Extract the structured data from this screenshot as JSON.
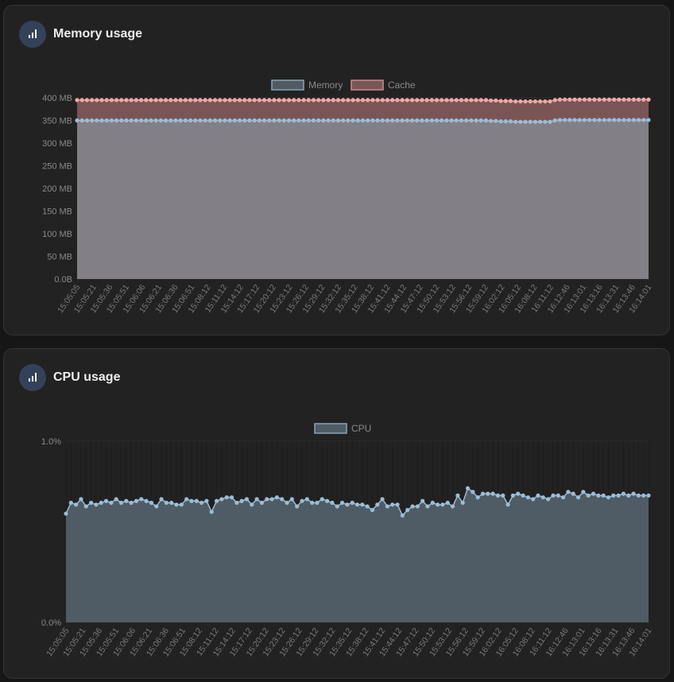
{
  "colors": {
    "memory_fill": "#828086",
    "memory_line": "#9bbdd6",
    "cache_fill": "#7a5556",
    "cache_line": "#f0a8a8",
    "cpu_fill": "#4f5c65",
    "cpu_line": "#9bbdd6",
    "legend_memory_fill": "#4f5c65",
    "legend_memory_border": "#8aa3b8",
    "legend_cache_fill": "#7a5556",
    "legend_cache_border": "#d08a8a"
  },
  "memory": {
    "title": "Memory usage",
    "icon": "bar-chart-icon",
    "legend": [
      "Memory",
      "Cache"
    ]
  },
  "cpu": {
    "title": "CPU usage",
    "icon": "bar-chart-icon",
    "legend": [
      "CPU"
    ]
  },
  "chart_data": [
    {
      "type": "area",
      "title": "Memory usage",
      "ylim": [
        0,
        400
      ],
      "y_ticks": [
        "0.0B",
        "50 MB",
        "100 MB",
        "150 MB",
        "200 MB",
        "250 MB",
        "300 MB",
        "350 MB",
        "400 MB"
      ],
      "x_ticks": [
        "15:05:05",
        "15:05:21",
        "15:05:36",
        "15:05:51",
        "15:06:06",
        "15:06:21",
        "15:06:36",
        "15:06:51",
        "15:08:12",
        "15:11:12",
        "15:14:12",
        "15:17:12",
        "15:20:12",
        "15:23:12",
        "15:26:12",
        "15:29:12",
        "15:32:12",
        "15:35:12",
        "15:38:12",
        "15:41:12",
        "15:44:12",
        "15:47:12",
        "15:50:12",
        "15:53:12",
        "15:56:12",
        "15:59:12",
        "16:02:12",
        "16:05:12",
        "16:08:12",
        "16:11:12",
        "16:12:46",
        "16:13:01",
        "16:13:16",
        "16:13:31",
        "16:13:46",
        "16:14:01"
      ],
      "legend_position": "top",
      "series": [
        {
          "name": "Memory",
          "values": [
            350,
            350,
            350,
            350,
            350,
            350,
            350,
            350,
            350,
            350,
            350,
            350,
            350,
            350,
            350,
            350,
            350,
            350,
            350,
            350,
            350,
            350,
            350,
            350,
            350,
            350,
            350,
            350,
            350,
            350,
            350,
            350,
            350,
            350,
            350,
            350,
            350,
            350,
            350,
            350,
            350,
            350,
            350,
            350,
            350,
            350,
            350,
            350,
            350,
            350,
            350,
            350,
            350,
            350,
            350,
            350,
            350,
            350,
            350,
            350,
            350,
            350,
            350,
            350,
            350,
            350,
            350,
            350,
            350,
            350,
            350,
            350,
            350,
            350,
            350,
            350,
            350,
            350,
            350,
            350,
            350,
            350,
            350,
            350,
            349,
            349,
            348,
            348,
            348,
            347,
            347,
            347,
            347,
            347,
            347,
            347,
            347,
            350,
            351,
            351,
            351,
            351,
            351,
            351,
            351,
            351,
            351,
            351,
            351,
            351,
            351,
            351,
            351,
            351,
            351,
            351,
            351
          ]
        },
        {
          "name": "Cache",
          "values": [
            395,
            395,
            395,
            395,
            395,
            395,
            395,
            395,
            395,
            395,
            395,
            395,
            395,
            395,
            395,
            395,
            395,
            395,
            395,
            395,
            395,
            395,
            395,
            395,
            395,
            395,
            395,
            395,
            395,
            395,
            395,
            395,
            395,
            395,
            395,
            395,
            395,
            395,
            395,
            395,
            395,
            395,
            395,
            395,
            395,
            395,
            395,
            395,
            395,
            395,
            395,
            395,
            395,
            395,
            395,
            395,
            395,
            395,
            395,
            395,
            395,
            395,
            395,
            395,
            395,
            395,
            395,
            395,
            395,
            395,
            395,
            395,
            395,
            395,
            395,
            395,
            395,
            395,
            395,
            395,
            395,
            395,
            395,
            395,
            394,
            394,
            393,
            393,
            393,
            392,
            392,
            392,
            392,
            392,
            392,
            392,
            392,
            395,
            396,
            396,
            396,
            396,
            396,
            396,
            396,
            396,
            396,
            396,
            396,
            396,
            396,
            396,
            396,
            396,
            396,
            396,
            396
          ]
        }
      ]
    },
    {
      "type": "area",
      "title": "CPU usage",
      "ylim": [
        0,
        1.0
      ],
      "y_ticks": [
        "0.0%",
        "1.0%"
      ],
      "x_ticks": [
        "15:05:05",
        "15:05:21",
        "15:05:36",
        "15:05:51",
        "15:06:06",
        "15:06:21",
        "15:06:36",
        "15:06:51",
        "15:08:12",
        "15:11:12",
        "15:14:12",
        "15:17:12",
        "15:20:12",
        "15:23:12",
        "15:26:12",
        "15:29:12",
        "15:32:12",
        "15:35:12",
        "15:38:12",
        "15:41:12",
        "15:44:12",
        "15:47:12",
        "15:50:12",
        "15:53:12",
        "15:56:12",
        "15:59:12",
        "16:02:12",
        "16:05:12",
        "16:08:12",
        "16:11:12",
        "16:12:46",
        "16:13:01",
        "16:13:16",
        "16:13:31",
        "16:13:46",
        "16:14:01"
      ],
      "legend_position": "top",
      "series": [
        {
          "name": "CPU",
          "values": [
            0.6,
            0.66,
            0.65,
            0.68,
            0.64,
            0.66,
            0.65,
            0.66,
            0.67,
            0.66,
            0.68,
            0.66,
            0.67,
            0.66,
            0.67,
            0.68,
            0.67,
            0.66,
            0.64,
            0.68,
            0.66,
            0.66,
            0.65,
            0.65,
            0.68,
            0.67,
            0.67,
            0.66,
            0.67,
            0.61,
            0.67,
            0.68,
            0.69,
            0.69,
            0.66,
            0.67,
            0.68,
            0.65,
            0.68,
            0.66,
            0.68,
            0.68,
            0.69,
            0.68,
            0.66,
            0.68,
            0.64,
            0.67,
            0.68,
            0.66,
            0.66,
            0.68,
            0.67,
            0.66,
            0.64,
            0.66,
            0.65,
            0.66,
            0.65,
            0.65,
            0.64,
            0.62,
            0.65,
            0.68,
            0.64,
            0.65,
            0.65,
            0.59,
            0.62,
            0.64,
            0.64,
            0.67,
            0.64,
            0.66,
            0.65,
            0.65,
            0.66,
            0.64,
            0.7,
            0.66,
            0.74,
            0.72,
            0.69,
            0.71,
            0.71,
            0.71,
            0.7,
            0.7,
            0.65,
            0.7,
            0.71,
            0.7,
            0.69,
            0.68,
            0.7,
            0.69,
            0.68,
            0.7,
            0.7,
            0.69,
            0.72,
            0.71,
            0.69,
            0.72,
            0.7,
            0.71,
            0.7,
            0.7,
            0.69,
            0.7,
            0.7,
            0.71,
            0.7,
            0.71,
            0.7,
            0.7,
            0.7
          ]
        }
      ]
    }
  ]
}
